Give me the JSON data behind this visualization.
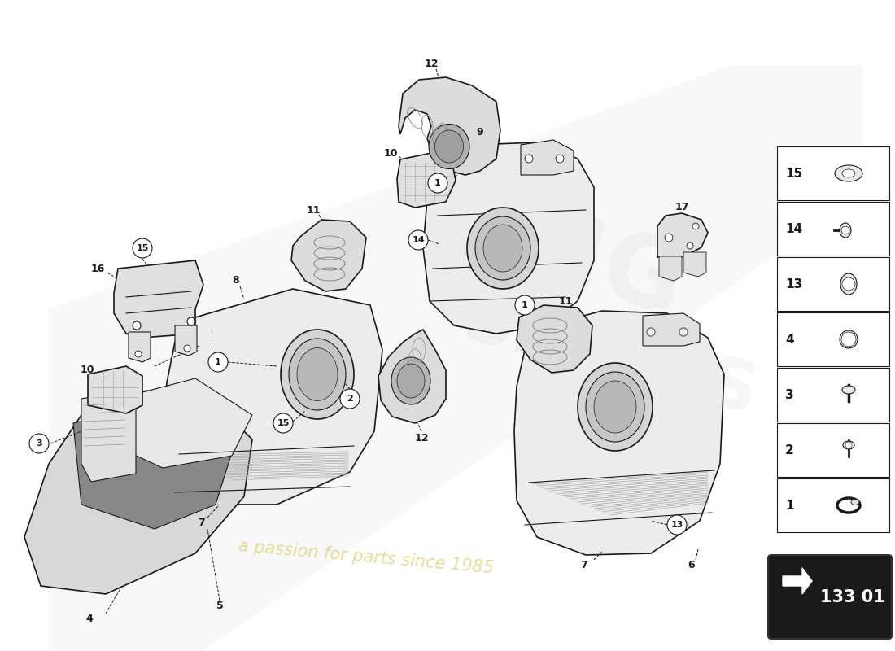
{
  "diagram_code": "133 01",
  "background_color": "#ffffff",
  "watermark_text": "a passion for parts since 1985",
  "line_color": "#1a1a1a",
  "legend_items": [
    15,
    14,
    13,
    4,
    3,
    2,
    1
  ]
}
